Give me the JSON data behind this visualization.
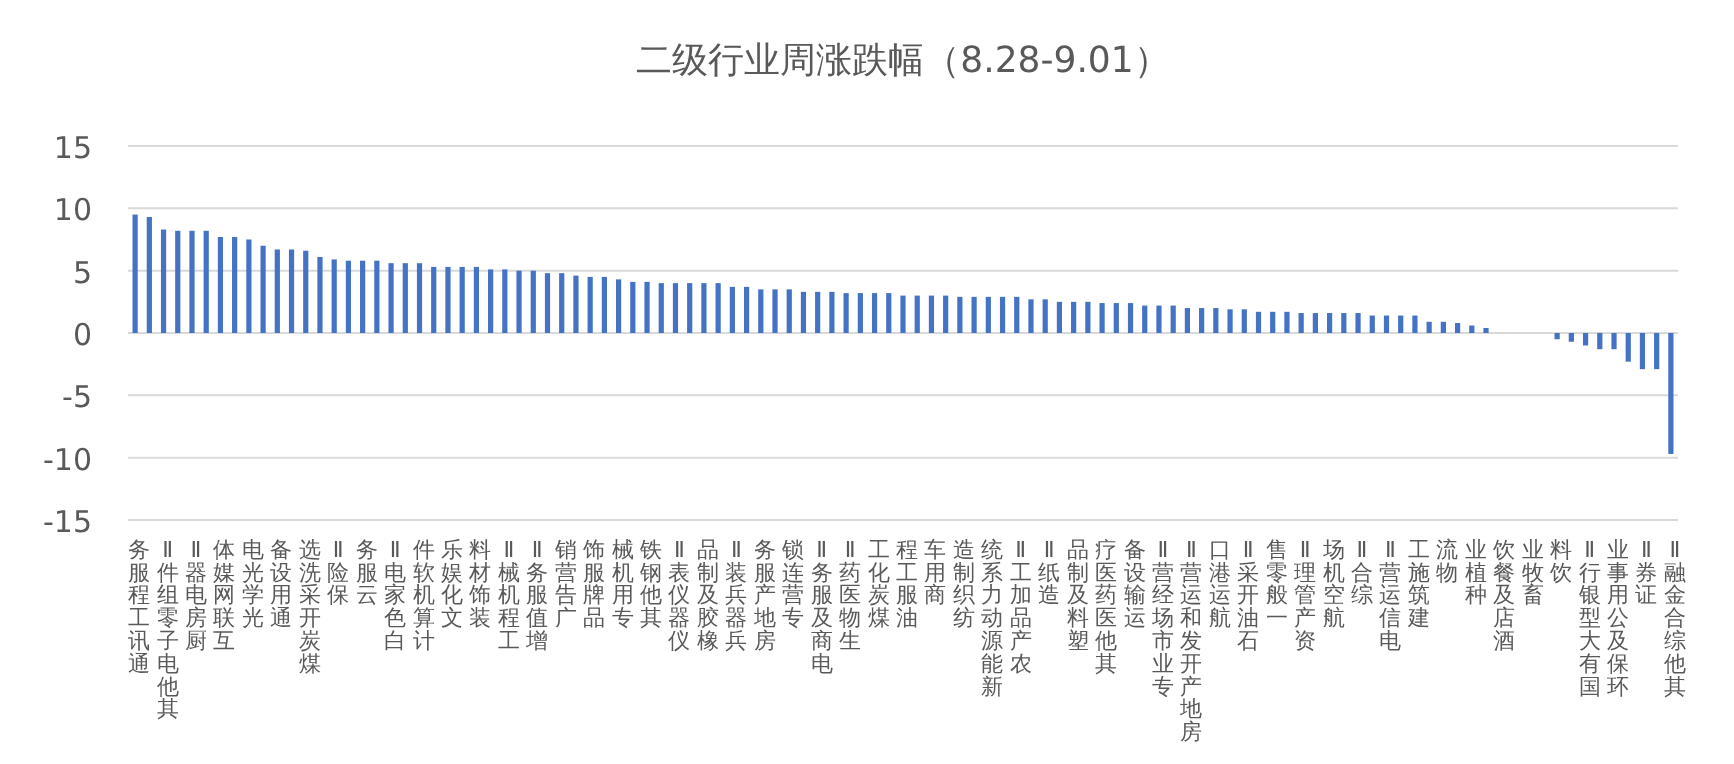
{
  "chart_data": {
    "type": "bar",
    "title": "二级行业周涨跌幅（8.28-9.01）",
    "categories": [
      "通讯工程服务",
      null,
      "其他电子零组件Ⅱ",
      null,
      "厨房电器Ⅱ",
      null,
      "互联网媒体",
      null,
      "光学光电",
      null,
      "通用设备",
      null,
      "煤炭开采洗选",
      null,
      "保险Ⅱ",
      null,
      "云服务",
      null,
      "白色家电Ⅱ",
      null,
      "计算机软件",
      null,
      "文化娱乐",
      null,
      "装饰材料",
      null,
      "工程机械Ⅱ",
      null,
      "增值服务Ⅱ",
      null,
      "广告营销",
      null,
      "品牌服饰",
      null,
      "专用机械",
      null,
      "其他钢铁",
      null,
      "仪器仪表Ⅱ",
      null,
      "橡胶及制品",
      null,
      "兵器兵装Ⅱ",
      null,
      "房地产服务",
      null,
      "专营连锁",
      null,
      "电商及服务Ⅱ",
      null,
      "生物医药Ⅱ",
      null,
      "煤炭化工",
      null,
      "油服工程",
      null,
      "商用车",
      null,
      "纺织制造",
      null,
      "新能源动力系统",
      null,
      "农产品加工Ⅱ",
      null,
      "造纸Ⅱ",
      null,
      "塑料及制品",
      null,
      "其他医药医疗",
      null,
      "运输设备",
      null,
      "专业市场经营Ⅱ",
      null,
      "房地产开发和运营Ⅱ",
      null,
      "航运港口",
      null,
      "石油开采Ⅱ",
      null,
      "一般零售",
      null,
      "资产管理Ⅱ",
      null,
      "航空机场",
      null,
      "综合Ⅱ",
      null,
      "电信运营Ⅱ",
      null,
      "建筑施工",
      null,
      "物流",
      null,
      "种植业",
      null,
      "酒店及餐饮",
      null,
      "畜牧业",
      null,
      "饮料",
      null,
      "国有大型银行Ⅱ",
      null,
      "环保及公用事业",
      null,
      "证券Ⅱ",
      null,
      "其他综合金融Ⅱ"
    ],
    "values": [
      9.5,
      9.3,
      8.3,
      8.2,
      8.2,
      8.2,
      7.7,
      7.7,
      7.5,
      7.0,
      6.7,
      6.7,
      6.6,
      6.1,
      5.9,
      5.8,
      5.8,
      5.8,
      5.6,
      5.6,
      5.6,
      5.3,
      5.3,
      5.3,
      5.3,
      5.1,
      5.1,
      5.0,
      5.0,
      4.8,
      4.8,
      4.6,
      4.5,
      4.5,
      4.3,
      4.1,
      4.1,
      4.0,
      4.0,
      4.0,
      4.0,
      4.0,
      3.7,
      3.7,
      3.5,
      3.5,
      3.5,
      3.3,
      3.3,
      3.3,
      3.2,
      3.2,
      3.2,
      3.2,
      3.0,
      3.0,
      3.0,
      3.0,
      2.9,
      2.9,
      2.9,
      2.9,
      2.9,
      2.7,
      2.7,
      2.5,
      2.5,
      2.5,
      2.4,
      2.4,
      2.4,
      2.2,
      2.2,
      2.2,
      2.0,
      2.0,
      2.0,
      1.9,
      1.9,
      1.7,
      1.7,
      1.7,
      1.6,
      1.6,
      1.6,
      1.6,
      1.6,
      1.4,
      1.4,
      1.4,
      1.4,
      0.9,
      0.9,
      0.8,
      0.6,
      0.4,
      0,
      0,
      0,
      0,
      -0.5,
      -0.7,
      -1.0,
      -1.3,
      -1.3,
      -2.3,
      -2.9,
      -2.9,
      -9.7
    ],
    "color": "#4472c4",
    "ylim": [
      -15,
      15
    ],
    "yticks": [
      -15,
      -10,
      -5,
      0,
      5,
      10,
      15
    ],
    "grid": "y"
  }
}
